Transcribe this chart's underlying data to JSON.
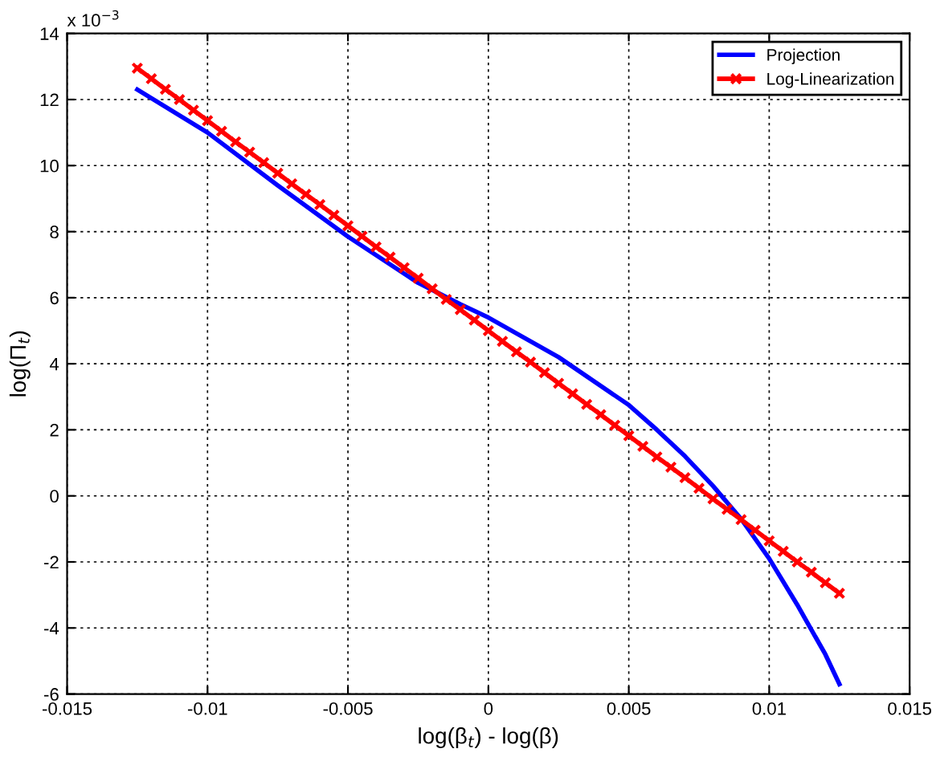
{
  "chart_data": {
    "type": "line",
    "xlabel": "log(β$_{t}$) - log(β)",
    "ylabel": "log(Π$_{t}$)",
    "annotations": [
      "x 10$^{−3}$"
    ],
    "xlim": [
      -0.015,
      0.015
    ],
    "xticks": [
      -0.015,
      -0.01,
      -0.005,
      0,
      0.005,
      0.01,
      0.015
    ],
    "ylim": [
      -6,
      14
    ],
    "yticks": [
      -6,
      -4,
      -2,
      0,
      2,
      4,
      6,
      8,
      10,
      12,
      14
    ],
    "grid": true,
    "legend": "top right",
    "series": [
      {
        "name": "Projection",
        "color": "#0000ff",
        "marker": "none",
        "x": [
          -0.0125,
          -0.01,
          -0.0075,
          -0.005,
          -0.0025,
          -0.001,
          0,
          0.0025,
          0.005,
          0.006,
          0.007,
          0.008,
          0.009,
          0.01,
          0.011,
          0.012,
          0.0125
        ],
        "values": [
          12.3,
          11.0,
          9.4,
          7.85,
          6.45,
          5.8,
          5.4,
          4.2,
          2.75,
          2.0,
          1.2,
          0.3,
          -0.7,
          -1.9,
          -3.3,
          -4.8,
          -5.7
        ]
      },
      {
        "name": "Log-Linearization",
        "color": "#ff0000",
        "marker": "cross",
        "x": [
          -0.0125,
          -0.012,
          -0.0115,
          -0.011,
          -0.0105,
          -0.01,
          -0.0095,
          -0.009,
          -0.0085,
          -0.008,
          -0.0075,
          -0.007,
          -0.0065,
          -0.006,
          -0.0055,
          -0.005,
          -0.0045,
          -0.004,
          -0.0035,
          -0.003,
          -0.0025,
          -0.002,
          -0.0015,
          -0.001,
          -0.0005,
          0,
          0.0005,
          0.001,
          0.0015,
          0.002,
          0.0025,
          0.003,
          0.0035,
          0.004,
          0.0045,
          0.005,
          0.0055,
          0.006,
          0.0065,
          0.007,
          0.0075,
          0.008,
          0.0085,
          0.009,
          0.0095,
          0.01,
          0.0105,
          0.011,
          0.0115,
          0.012,
          0.0125
        ],
        "values": [
          12.95,
          12.63,
          12.31,
          12.0,
          11.68,
          11.36,
          11.04,
          10.72,
          10.41,
          10.09,
          9.77,
          9.45,
          9.13,
          8.82,
          8.5,
          8.18,
          7.86,
          7.54,
          7.23,
          6.91,
          6.59,
          6.27,
          5.95,
          5.64,
          5.32,
          5.0,
          4.68,
          4.36,
          4.05,
          3.73,
          3.41,
          3.09,
          2.77,
          2.46,
          2.14,
          1.82,
          1.5,
          1.18,
          0.87,
          0.55,
          0.23,
          -0.09,
          -0.41,
          -0.72,
          -1.04,
          -1.36,
          -1.68,
          -2.0,
          -2.31,
          -2.63,
          -2.95
        ]
      }
    ]
  }
}
